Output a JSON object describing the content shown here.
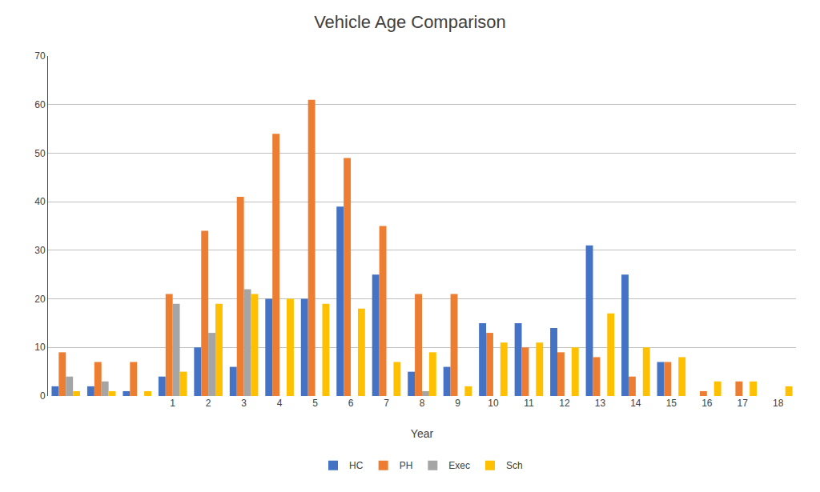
{
  "chart_data": {
    "type": "bar",
    "title": "Vehicle Age Comparison",
    "x_label": "Year",
    "categories": [
      null,
      null,
      null,
      "1",
      "2",
      "3",
      "4",
      "5",
      "6",
      "7",
      "8",
      "9",
      "10",
      "11",
      "12",
      "13",
      "14",
      "15",
      "16",
      "17",
      "18"
    ],
    "series": [
      {
        "name": "HC",
        "color": "#4472C4",
        "values": [
          2,
          2,
          1,
          4,
          10,
          6,
          20,
          20,
          39,
          25,
          5,
          6,
          15,
          15,
          14,
          31,
          25,
          7,
          0,
          0,
          0
        ]
      },
      {
        "name": "PH",
        "color": "#ED7D31",
        "values": [
          9,
          7,
          7,
          21,
          34,
          41,
          54,
          61,
          49,
          35,
          21,
          21,
          13,
          10,
          9,
          8,
          4,
          7,
          1,
          3,
          0
        ]
      },
      {
        "name": "Exec",
        "color": "#A5A5A5",
        "values": [
          4,
          3,
          0,
          19,
          13,
          22,
          0,
          0,
          0,
          0,
          1,
          0,
          0,
          0,
          0,
          0,
          0,
          0,
          0,
          0,
          0
        ]
      },
      {
        "name": "Sch",
        "color": "#FFC000",
        "values": [
          1,
          1,
          1,
          5,
          19,
          21,
          20,
          19,
          18,
          7,
          9,
          2,
          11,
          11,
          10,
          17,
          10,
          8,
          3,
          3,
          2
        ]
      }
    ],
    "ylim": [
      0,
      70
    ],
    "yticks": [
      0,
      10,
      20,
      30,
      40,
      50,
      60,
      70
    ],
    "grid": true,
    "legend": "bottom"
  }
}
